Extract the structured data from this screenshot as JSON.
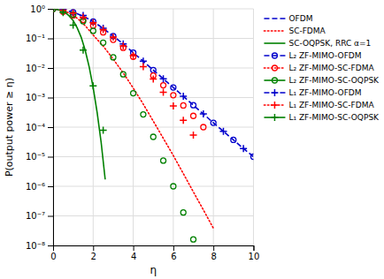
{
  "chart_data": {
    "type": "line",
    "x_label": "η",
    "y_label": "P(output power ≥ η)",
    "log": "y",
    "grid": true,
    "legend": "right",
    "xlim": [
      0,
      10
    ],
    "xticks": [
      0,
      2,
      4,
      6,
      8,
      10
    ],
    "ylim": [
      1e-08,
      1
    ],
    "yticks": [
      {
        "value": 1e-08,
        "label": "10⁻⁸"
      },
      {
        "value": 1e-07,
        "label": "10⁻⁷"
      },
      {
        "value": 1e-06,
        "label": "10⁻⁶"
      },
      {
        "value": 1e-05,
        "label": "10⁻⁵"
      },
      {
        "value": 0.0001,
        "label": "10⁻⁴"
      },
      {
        "value": 0.001,
        "label": "10⁻³"
      },
      {
        "value": 0.01,
        "label": "10⁻²"
      },
      {
        "value": 0.1,
        "label": "10⁻¹"
      },
      {
        "value": 1,
        "label": "10⁰"
      }
    ],
    "series": [
      {
        "name": "OFDM",
        "color": "#0000cc",
        "line_style": "dashed",
        "x": [
          0.0,
          0.2,
          0.4,
          0.6,
          0.8,
          1.0,
          1.2,
          1.4,
          1.6,
          1.8,
          2.0,
          2.5,
          3.0,
          3.5,
          4.0,
          4.5,
          5.0,
          5.5,
          6.0,
          6.5,
          7.0,
          7.5,
          8.0,
          8.5,
          9.0,
          9.5,
          10.0
        ],
        "values": [
          1.0,
          0.97,
          0.94,
          0.89,
          0.83,
          0.76,
          0.68,
          0.6,
          0.52,
          0.44,
          0.37,
          0.22,
          0.12,
          0.065,
          0.033,
          0.017,
          0.0085,
          0.0043,
          0.0022,
          0.0011,
          0.00055,
          0.00028,
          0.00014,
          7.2e-05,
          3.7e-05,
          1.9e-05,
          1e-05
        ]
      },
      {
        "name": "SC-FDMA",
        "color": "#ff0000",
        "line_style": "dotted",
        "x": [
          0.0,
          0.2,
          0.4,
          0.6,
          0.8,
          1.0,
          1.2,
          1.4,
          1.6,
          1.8,
          2.0,
          2.5,
          3.0,
          3.5,
          4.0,
          4.5,
          5.0,
          5.5,
          6.0,
          6.5,
          7.0,
          7.5,
          8.0
        ],
        "values": [
          1.0,
          0.96,
          0.9,
          0.82,
          0.72,
          0.6,
          0.48,
          0.37,
          0.27,
          0.19,
          0.13,
          0.055,
          0.02,
          0.0068,
          0.0021,
          0.0006,
          0.00016,
          4.2e-05,
          1.1e-05,
          2.7e-06,
          6.5e-07,
          1.6e-07,
          3.8e-08
        ]
      },
      {
        "name": "SC-OQPSK, RRC α=1",
        "color": "#008000",
        "line_style": "solid",
        "x": [
          0.0,
          0.2,
          0.4,
          0.6,
          0.8,
          1.0,
          1.2,
          1.4,
          1.6,
          1.8,
          2.0,
          2.2,
          2.4,
          2.6
        ],
        "values": [
          1.0,
          0.95,
          0.87,
          0.75,
          0.58,
          0.4,
          0.23,
          0.11,
          0.04,
          0.011,
          0.0022,
          0.00031,
          3e-05,
          1.7e-06
        ]
      },
      {
        "name": "L₂ ZF-MIMO-OFDM",
        "type": "scatter",
        "color": "#0000cc",
        "line_style": "dashed",
        "marker": "circle",
        "x": [
          0.0,
          1.0,
          2.0,
          3.0,
          4.0,
          5.0,
          6.0,
          7.0,
          8.0,
          9.0,
          10.0
        ],
        "values": [
          1.0,
          0.76,
          0.37,
          0.12,
          0.033,
          0.0085,
          0.0022,
          0.00055,
          0.00014,
          3.7e-05,
          1e-05
        ]
      },
      {
        "name": "L₂ ZF-MIMO-SC-FDMA",
        "type": "scatter",
        "color": "#ff0000",
        "line_style": "dotted",
        "marker": "circle",
        "x": [
          0.0,
          0.5,
          1.0,
          1.5,
          2.0,
          2.5,
          3.0,
          3.5,
          4.0,
          5.0,
          5.5,
          6.0,
          6.5,
          7.0,
          7.5
        ],
        "values": [
          1.0,
          0.8,
          0.6,
          0.42,
          0.27,
          0.16,
          0.09,
          0.048,
          0.024,
          0.0055,
          0.0026,
          0.0012,
          0.00054,
          0.00024,
          0.0001
        ]
      },
      {
        "name": "L₂ ZF-MIMO-SC-OQPSK",
        "type": "scatter",
        "color": "#008000",
        "line_style": "solid",
        "marker": "circle",
        "x": [
          0.0,
          0.5,
          1.0,
          1.5,
          2.0,
          2.5,
          3.0,
          3.5,
          4.0,
          4.5,
          5.0,
          5.5,
          6.0,
          6.5,
          7.0
        ],
        "values": [
          1.0,
          0.87,
          0.64,
          0.38,
          0.18,
          0.072,
          0.023,
          0.0061,
          0.0014,
          0.00027,
          4.7e-05,
          7.4e-06,
          1e-06,
          1.3e-07,
          1.6e-08
        ]
      },
      {
        "name": "L₁ ZF-MIMO-OFDM",
        "type": "scatter",
        "color": "#0000cc",
        "line_style": "dashed",
        "marker": "plus",
        "x": [
          0.5,
          1.5,
          2.5,
          3.5,
          4.5,
          5.5,
          6.5,
          7.5,
          8.5,
          9.5
        ],
        "values": [
          0.97,
          0.6,
          0.22,
          0.065,
          0.017,
          0.0043,
          0.0011,
          0.00028,
          7.2e-05,
          1.9e-05
        ]
      },
      {
        "name": "L₁ ZF-MIMO-SC-FDMA",
        "type": "scatter",
        "color": "#ff0000",
        "line_style": "dotted",
        "marker": "plus",
        "x": [
          0.5,
          1.0,
          1.5,
          2.0,
          2.5,
          3.0,
          3.5,
          4.0,
          4.5,
          5.0,
          5.5,
          6.0,
          6.5,
          7.0
        ],
        "values": [
          0.9,
          0.72,
          0.52,
          0.34,
          0.2,
          0.11,
          0.056,
          0.026,
          0.011,
          0.0042,
          0.0015,
          0.00052,
          0.00017,
          5.4e-05
        ]
      },
      {
        "name": "L₁ ZF-MIMO-SC-OQPSK",
        "type": "scatter",
        "color": "#008000",
        "line_style": "solid",
        "marker": "plus",
        "x": [
          0.5,
          1.0,
          1.5,
          2.0,
          2.5
        ],
        "values": [
          0.75,
          0.28,
          0.04,
          0.0025,
          7.8e-05
        ]
      }
    ]
  }
}
